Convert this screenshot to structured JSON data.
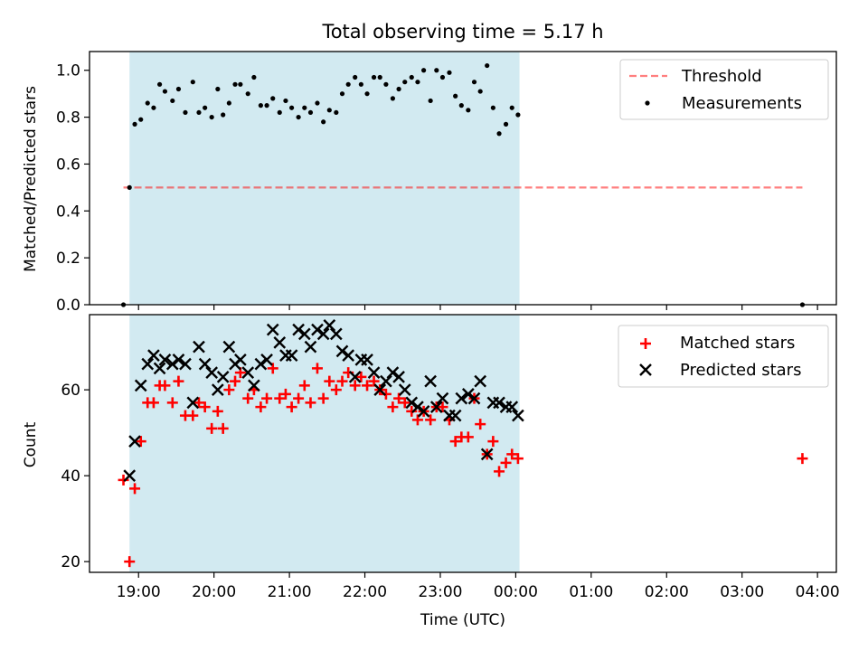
{
  "title": "Total observing time = 5.17 h",
  "colors": {
    "span": "#add8e6",
    "threshold": "#ff0000",
    "measurement": "#000000",
    "matched": "#ff0000",
    "predicted": "#000000"
  },
  "chart_data": [
    {
      "type": "scatter",
      "panel": "top",
      "ylabel": "Matched/Predicted stars",
      "xlim_hours": [
        18.35,
        28.25
      ],
      "ylim": [
        0.0,
        1.08
      ],
      "yticks": [
        0.0,
        0.2,
        0.4,
        0.6,
        0.8,
        1.0
      ],
      "ytick_labels": [
        "0.0",
        "0.2",
        "0.4",
        "0.6",
        "0.8",
        "1.0"
      ],
      "observing_span_hours": [
        18.88,
        24.05
      ],
      "threshold": {
        "name": "Threshold",
        "value": 0.5,
        "x_range_hours": [
          18.8,
          27.8
        ]
      },
      "legend": {
        "position": "top-right",
        "entries": [
          "Threshold",
          "Measurements"
        ]
      },
      "series": [
        {
          "name": "Measurements",
          "marker": "dot",
          "x_hours": [
            18.8,
            18.88,
            18.95,
            19.03,
            19.12,
            19.2,
            19.28,
            19.35,
            19.45,
            19.53,
            19.62,
            19.72,
            19.8,
            19.88,
            19.97,
            20.05,
            20.12,
            20.2,
            20.28,
            20.35,
            20.45,
            20.53,
            20.62,
            20.7,
            20.78,
            20.87,
            20.95,
            21.03,
            21.12,
            21.2,
            21.28,
            21.37,
            21.45,
            21.53,
            21.62,
            21.7,
            21.78,
            21.87,
            21.95,
            22.03,
            22.12,
            22.2,
            22.28,
            22.37,
            22.45,
            22.53,
            22.62,
            22.7,
            22.78,
            22.87,
            22.95,
            23.03,
            23.12,
            23.2,
            23.28,
            23.37,
            23.45,
            23.53,
            23.62,
            23.7,
            23.78,
            23.87,
            23.95,
            24.03,
            27.8
          ],
          "values": [
            0.0,
            0.5,
            0.77,
            0.79,
            0.86,
            0.84,
            0.94,
            0.91,
            0.87,
            0.92,
            0.82,
            0.95,
            0.82,
            0.84,
            0.8,
            0.92,
            0.81,
            0.86,
            0.94,
            0.94,
            0.9,
            0.97,
            0.85,
            0.85,
            0.88,
            0.82,
            0.87,
            0.84,
            0.8,
            0.84,
            0.82,
            0.86,
            0.78,
            0.83,
            0.82,
            0.9,
            0.94,
            0.97,
            0.94,
            0.9,
            0.97,
            0.97,
            0.94,
            0.88,
            0.92,
            0.95,
            0.97,
            0.95,
            1.0,
            0.87,
            1.0,
            0.97,
            0.99,
            0.89,
            0.85,
            0.83,
            0.95,
            0.91,
            1.02,
            0.84,
            0.73,
            0.77,
            0.84,
            0.81,
            0.0
          ]
        }
      ]
    },
    {
      "type": "scatter",
      "panel": "bottom",
      "xlabel": "Time (UTC)",
      "ylabel": "Count",
      "xlim_hours": [
        18.35,
        28.25
      ],
      "ylim": [
        17.5,
        77.5
      ],
      "yticks": [
        20,
        40,
        60
      ],
      "ytick_labels": [
        "20",
        "40",
        "60"
      ],
      "xticks_hours": [
        19,
        20,
        21,
        22,
        23,
        24,
        25,
        26,
        27,
        28
      ],
      "xtick_labels": [
        "19:00",
        "20:00",
        "21:00",
        "22:00",
        "23:00",
        "00:00",
        "01:00",
        "02:00",
        "03:00",
        "04:00"
      ],
      "observing_span_hours": [
        18.88,
        24.05
      ],
      "legend": {
        "position": "top-right",
        "entries": [
          "Matched stars",
          "Predicted stars"
        ]
      },
      "series": [
        {
          "name": "Matched stars",
          "marker": "plus",
          "x_hours": [
            18.8,
            18.88,
            18.95,
            19.03,
            19.12,
            19.2,
            19.28,
            19.35,
            19.45,
            19.53,
            19.62,
            19.72,
            19.8,
            19.88,
            19.97,
            20.05,
            20.12,
            20.2,
            20.28,
            20.35,
            20.45,
            20.53,
            20.62,
            20.7,
            20.78,
            20.87,
            20.95,
            21.03,
            21.12,
            21.2,
            21.28,
            21.37,
            21.45,
            21.53,
            21.62,
            21.7,
            21.78,
            21.87,
            21.95,
            22.03,
            22.12,
            22.2,
            22.28,
            22.37,
            22.45,
            22.53,
            22.62,
            22.7,
            22.78,
            22.87,
            22.95,
            23.03,
            23.12,
            23.2,
            23.28,
            23.37,
            23.45,
            23.53,
            23.62,
            23.7,
            23.78,
            23.87,
            23.95,
            24.03,
            27.8
          ],
          "values": [
            39,
            20,
            37,
            48,
            57,
            57,
            61,
            61,
            57,
            62,
            54,
            54,
            57,
            56,
            51,
            55,
            51,
            60,
            62,
            64,
            58,
            60,
            56,
            58,
            65,
            58,
            59,
            56,
            58,
            61,
            57,
            65,
            58,
            62,
            60,
            62,
            64,
            61,
            63,
            61,
            62,
            60,
            59,
            56,
            58,
            57,
            55,
            53,
            55,
            53,
            56,
            56,
            53,
            48,
            49,
            49,
            58,
            52,
            45,
            48,
            41,
            43,
            45,
            44,
            44
          ]
        },
        {
          "name": "Predicted stars",
          "marker": "x",
          "x_hours": [
            18.88,
            18.95,
            19.03,
            19.12,
            19.2,
            19.28,
            19.35,
            19.45,
            19.53,
            19.62,
            19.72,
            19.8,
            19.88,
            19.97,
            20.05,
            20.12,
            20.2,
            20.28,
            20.35,
            20.45,
            20.53,
            20.62,
            20.7,
            20.78,
            20.87,
            20.95,
            21.03,
            21.12,
            21.2,
            21.28,
            21.37,
            21.45,
            21.53,
            21.62,
            21.7,
            21.78,
            21.87,
            21.95,
            22.03,
            22.12,
            22.2,
            22.28,
            22.37,
            22.45,
            22.53,
            22.62,
            22.7,
            22.78,
            22.87,
            22.95,
            23.03,
            23.12,
            23.2,
            23.28,
            23.37,
            23.45,
            23.53,
            23.62,
            23.7,
            23.78,
            23.87,
            23.95,
            24.03
          ],
          "values": [
            40,
            48,
            61,
            66,
            68,
            65,
            67,
            66,
            67,
            66,
            57,
            70,
            66,
            64,
            60,
            63,
            70,
            66,
            67,
            64,
            61,
            66,
            67,
            74,
            71,
            68,
            68,
            74,
            73,
            70,
            74,
            73,
            75,
            73,
            69,
            68,
            63,
            67,
            67,
            64,
            60,
            62,
            64,
            63,
            60,
            57,
            56,
            55,
            62,
            56,
            58,
            54,
            54,
            58,
            59,
            58,
            62,
            45,
            57,
            57,
            56,
            56,
            54
          ]
        }
      ]
    }
  ]
}
